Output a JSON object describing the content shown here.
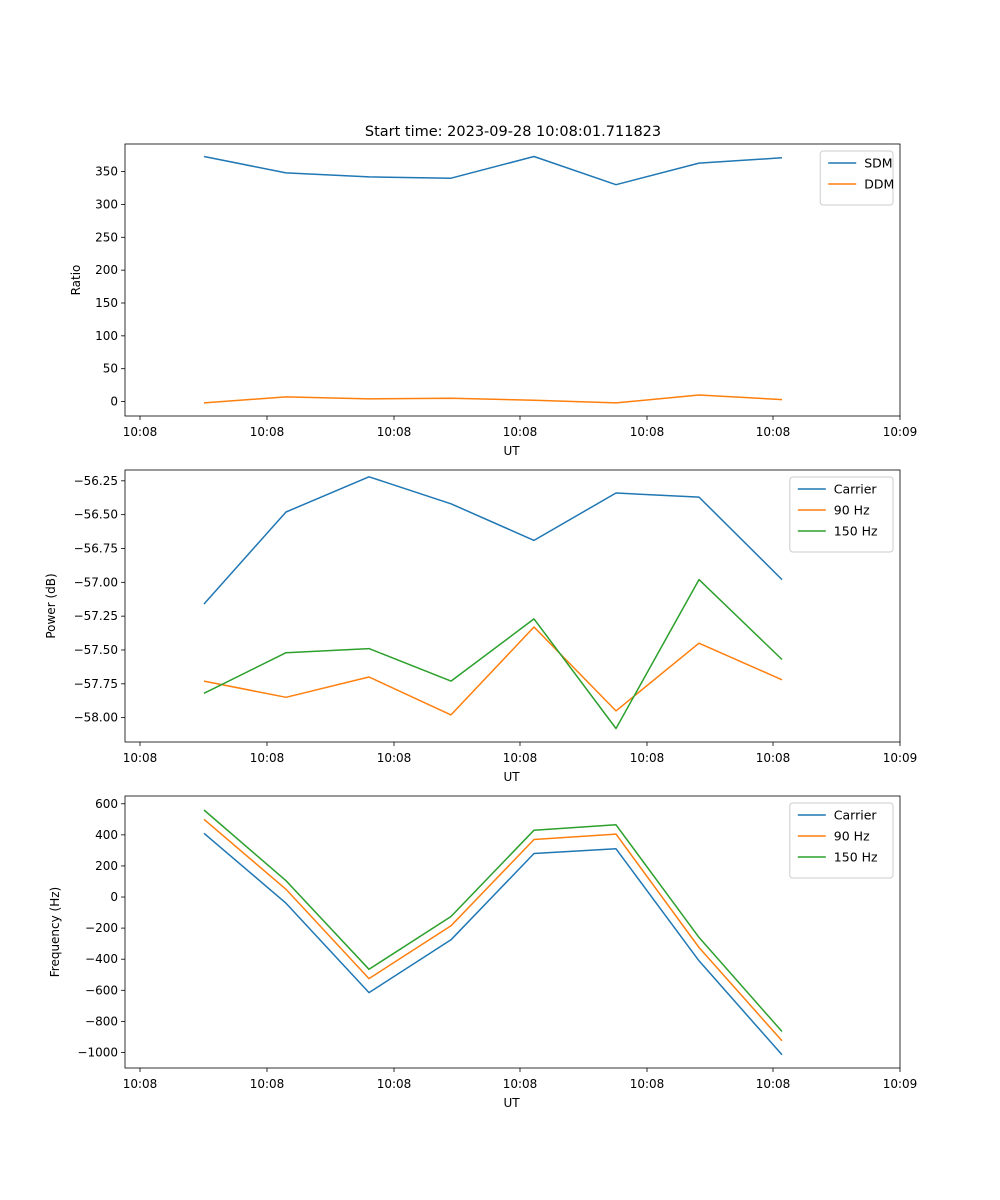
{
  "figure_title": "Start time: 2023-09-28 10:08:01.711823",
  "chart_data": [
    {
      "type": "line",
      "xlabel": "UT",
      "ylabel": "Ratio",
      "x_ticks": [
        "10:08",
        "10:08",
        "10:08",
        "10:08",
        "10:08",
        "10:08",
        "10:09"
      ],
      "ylim": [
        -22,
        392
      ],
      "y_ticks": [
        0,
        50,
        100,
        150,
        200,
        250,
        300,
        350
      ],
      "legend_position": "top-right",
      "series": [
        {
          "name": "SDM",
          "color": "#1f77b4",
          "values": [
            373,
            348,
            342,
            340,
            373,
            330,
            363,
            371
          ]
        },
        {
          "name": "DDM",
          "color": "#ff7f0e",
          "values": [
            -2,
            7,
            4,
            5,
            2,
            -2,
            10,
            3
          ]
        }
      ]
    },
    {
      "type": "line",
      "xlabel": "UT",
      "ylabel": "Power (dB)",
      "x_ticks": [
        "10:08",
        "10:08",
        "10:08",
        "10:08",
        "10:08",
        "10:08",
        "10:09"
      ],
      "ylim": [
        -58.18,
        -56.17
      ],
      "y_ticks": [
        -58.0,
        -57.75,
        -57.5,
        -57.25,
        -57.0,
        -56.75,
        -56.5,
        -56.25
      ],
      "legend_position": "top-right",
      "series": [
        {
          "name": "Carrier",
          "color": "#1f77b4",
          "values": [
            -57.16,
            -56.48,
            -56.22,
            -56.42,
            -56.69,
            -56.34,
            -56.37,
            -56.98
          ]
        },
        {
          "name": "90 Hz",
          "color": "#ff7f0e",
          "values": [
            -57.73,
            -57.85,
            -57.7,
            -57.98,
            -57.33,
            -57.95,
            -57.45,
            -57.72
          ]
        },
        {
          "name": "150 Hz",
          "color": "#2ca02c",
          "values": [
            -57.82,
            -57.52,
            -57.49,
            -57.73,
            -57.27,
            -58.08,
            -56.98,
            -57.57
          ]
        }
      ]
    },
    {
      "type": "line",
      "xlabel": "UT",
      "ylabel": "Frequency (Hz)",
      "x_ticks": [
        "10:08",
        "10:08",
        "10:08",
        "10:08",
        "10:08",
        "10:08",
        "10:09"
      ],
      "ylim": [
        -1100,
        650
      ],
      "y_ticks": [
        -1000,
        -800,
        -600,
        -400,
        -200,
        0,
        200,
        400,
        600
      ],
      "legend_position": "top-right",
      "series": [
        {
          "name": "Carrier",
          "color": "#1f77b4",
          "values": [
            410,
            -40,
            -615,
            -275,
            280,
            310,
            -410,
            -1015
          ]
        },
        {
          "name": "90 Hz",
          "color": "#ff7f0e",
          "values": [
            500,
            50,
            -525,
            -185,
            370,
            405,
            -325,
            -925
          ]
        },
        {
          "name": "150 Hz",
          "color": "#2ca02c",
          "values": [
            560,
            105,
            -465,
            -125,
            430,
            465,
            -260,
            -865
          ]
        }
      ]
    }
  ]
}
